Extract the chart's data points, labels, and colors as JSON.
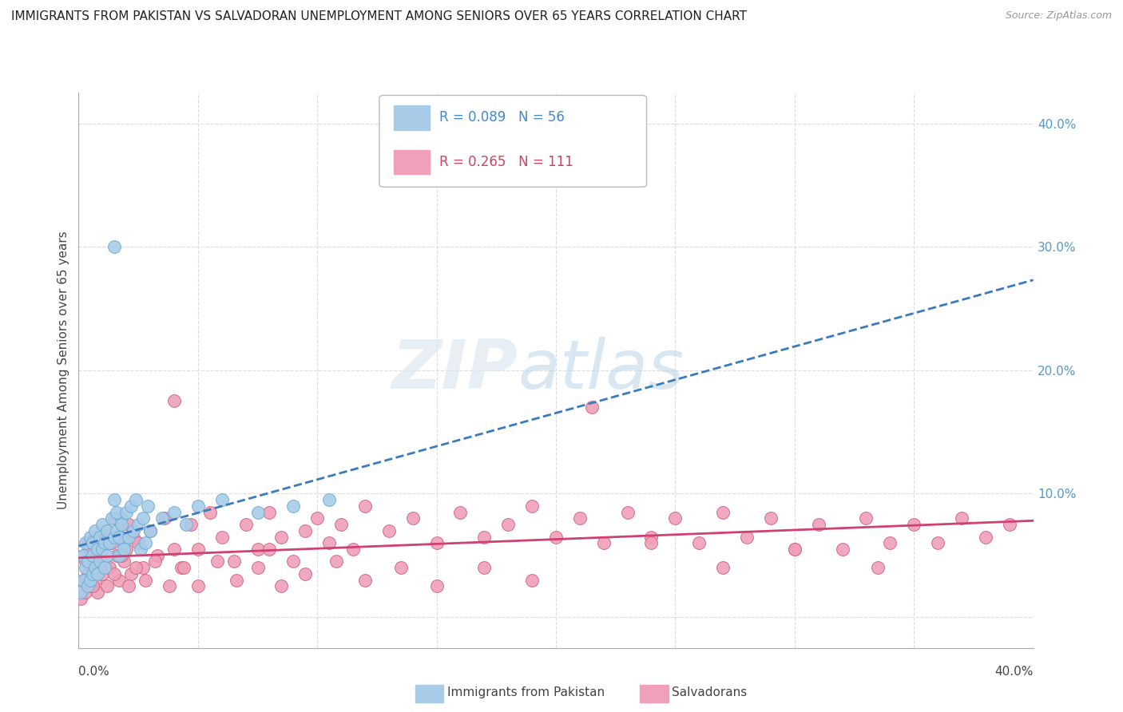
{
  "title": "IMMIGRANTS FROM PAKISTAN VS SALVADORAN UNEMPLOYMENT AMONG SENIORS OVER 65 YEARS CORRELATION CHART",
  "source": "Source: ZipAtlas.com",
  "ylabel": "Unemployment Among Seniors over 65 years",
  "xlim": [
    0.0,
    0.4
  ],
  "ylim": [
    -0.025,
    0.425
  ],
  "pakistan_color": "#a8cce8",
  "pakistan_edge": "#6aaad4",
  "salvadoran_color": "#f0a0b8",
  "salvadoran_edge": "#d06080",
  "trend_pakistan_color": "#3a7abf",
  "trend_salvadoran_color": "#d04070",
  "legend_text_pakistan": "R = 0.089   N = 56",
  "legend_text_salvadoran": "R = 0.265   N = 111",
  "legend_label_pakistan": "Immigrants from Pakistan",
  "legend_label_salvadoran": "Salvadorans",
  "watermark_zip": "ZIP",
  "watermark_atlas": "atlas",
  "pakistan_x": [
    0.001,
    0.002,
    0.002,
    0.003,
    0.003,
    0.004,
    0.004,
    0.005,
    0.005,
    0.006,
    0.006,
    0.006,
    0.007,
    0.007,
    0.008,
    0.008,
    0.009,
    0.009,
    0.01,
    0.01,
    0.011,
    0.011,
    0.012,
    0.012,
    0.013,
    0.014,
    0.015,
    0.015,
    0.016,
    0.017,
    0.018,
    0.019,
    0.015,
    0.016,
    0.017,
    0.018,
    0.019,
    0.02,
    0.021,
    0.022,
    0.023,
    0.024,
    0.025,
    0.026,
    0.027,
    0.028,
    0.029,
    0.03,
    0.035,
    0.04,
    0.045,
    0.05,
    0.06,
    0.075,
    0.09,
    0.105
  ],
  "pakistan_y": [
    0.02,
    0.03,
    0.05,
    0.04,
    0.06,
    0.025,
    0.045,
    0.065,
    0.03,
    0.05,
    0.035,
    0.06,
    0.04,
    0.07,
    0.055,
    0.035,
    0.065,
    0.045,
    0.075,
    0.055,
    0.06,
    0.04,
    0.07,
    0.05,
    0.06,
    0.08,
    0.065,
    0.095,
    0.07,
    0.05,
    0.08,
    0.06,
    0.3,
    0.085,
    0.065,
    0.075,
    0.055,
    0.085,
    0.065,
    0.09,
    0.07,
    0.095,
    0.075,
    0.055,
    0.08,
    0.06,
    0.09,
    0.07,
    0.08,
    0.085,
    0.075,
    0.09,
    0.095,
    0.085,
    0.09,
    0.095
  ],
  "salvadoran_x": [
    0.001,
    0.002,
    0.002,
    0.003,
    0.003,
    0.004,
    0.004,
    0.005,
    0.005,
    0.006,
    0.007,
    0.007,
    0.008,
    0.008,
    0.009,
    0.01,
    0.01,
    0.011,
    0.012,
    0.013,
    0.014,
    0.015,
    0.016,
    0.017,
    0.018,
    0.019,
    0.02,
    0.021,
    0.022,
    0.023,
    0.025,
    0.027,
    0.03,
    0.033,
    0.036,
    0.04,
    0.043,
    0.047,
    0.05,
    0.055,
    0.06,
    0.065,
    0.07,
    0.075,
    0.08,
    0.085,
    0.09,
    0.095,
    0.1,
    0.105,
    0.11,
    0.115,
    0.12,
    0.13,
    0.14,
    0.15,
    0.16,
    0.17,
    0.18,
    0.19,
    0.2,
    0.21,
    0.22,
    0.23,
    0.24,
    0.25,
    0.26,
    0.27,
    0.28,
    0.29,
    0.3,
    0.31,
    0.32,
    0.33,
    0.34,
    0.35,
    0.36,
    0.37,
    0.38,
    0.39,
    0.003,
    0.006,
    0.009,
    0.012,
    0.015,
    0.018,
    0.021,
    0.024,
    0.028,
    0.032,
    0.038,
    0.044,
    0.05,
    0.058,
    0.066,
    0.075,
    0.085,
    0.095,
    0.108,
    0.12,
    0.135,
    0.15,
    0.17,
    0.19,
    0.215,
    0.24,
    0.27,
    0.3,
    0.335,
    0.04,
    0.08
  ],
  "salvadoran_y": [
    0.015,
    0.03,
    0.05,
    0.02,
    0.045,
    0.035,
    0.06,
    0.025,
    0.055,
    0.04,
    0.065,
    0.03,
    0.05,
    0.02,
    0.06,
    0.035,
    0.055,
    0.045,
    0.07,
    0.04,
    0.06,
    0.08,
    0.05,
    0.03,
    0.065,
    0.045,
    0.055,
    0.075,
    0.035,
    0.065,
    0.06,
    0.04,
    0.07,
    0.05,
    0.08,
    0.055,
    0.04,
    0.075,
    0.055,
    0.085,
    0.065,
    0.045,
    0.075,
    0.055,
    0.085,
    0.065,
    0.045,
    0.07,
    0.08,
    0.06,
    0.075,
    0.055,
    0.09,
    0.07,
    0.08,
    0.06,
    0.085,
    0.065,
    0.075,
    0.09,
    0.065,
    0.08,
    0.06,
    0.085,
    0.065,
    0.08,
    0.06,
    0.085,
    0.065,
    0.08,
    0.055,
    0.075,
    0.055,
    0.08,
    0.06,
    0.075,
    0.06,
    0.08,
    0.065,
    0.075,
    0.03,
    0.025,
    0.04,
    0.025,
    0.035,
    0.05,
    0.025,
    0.04,
    0.03,
    0.045,
    0.025,
    0.04,
    0.025,
    0.045,
    0.03,
    0.04,
    0.025,
    0.035,
    0.045,
    0.03,
    0.04,
    0.025,
    0.04,
    0.03,
    0.17,
    0.06,
    0.04,
    0.055,
    0.04,
    0.175,
    0.055
  ]
}
